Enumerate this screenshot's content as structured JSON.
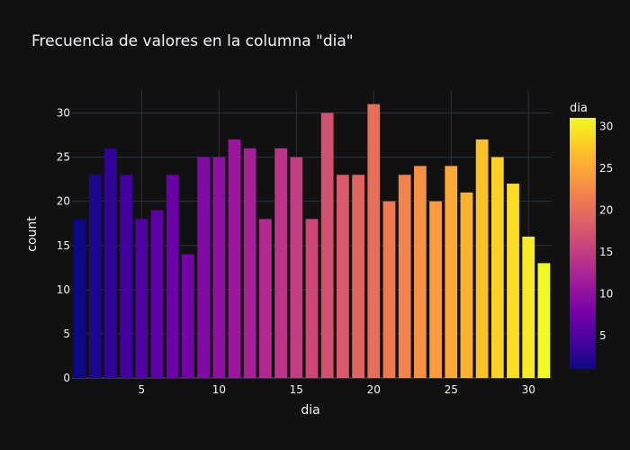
{
  "chart_data": {
    "type": "bar",
    "title": "Frecuencia de valores en la columna \"dia\"",
    "xlabel": "dia",
    "ylabel": "count",
    "x": [
      1,
      2,
      3,
      4,
      5,
      6,
      7,
      8,
      9,
      10,
      11,
      12,
      13,
      14,
      15,
      16,
      17,
      18,
      19,
      20,
      21,
      22,
      23,
      24,
      25,
      26,
      27,
      28,
      29,
      30,
      31
    ],
    "values": [
      18,
      23,
      26,
      23,
      18,
      19,
      23,
      14,
      25,
      25,
      27,
      26,
      18,
      26,
      25,
      18,
      30,
      23,
      23,
      31,
      20,
      23,
      24,
      20,
      24,
      21,
      27,
      25,
      22,
      16,
      13
    ],
    "xlim": [
      0.5,
      31.5
    ],
    "ylim": [
      0,
      32.6
    ],
    "x_ticks": [
      5,
      10,
      15,
      20,
      25,
      30
    ],
    "y_ticks": [
      0,
      5,
      10,
      15,
      20,
      25,
      30
    ],
    "grid": true,
    "colorbar": {
      "title": "dia",
      "colorscale": "plasma",
      "range": [
        1,
        31
      ],
      "ticks": [
        5,
        10,
        15,
        20,
        25,
        30
      ]
    },
    "colors": {
      "background": "#111111",
      "grid": "#283442",
      "text": "#f2f5fa"
    }
  }
}
